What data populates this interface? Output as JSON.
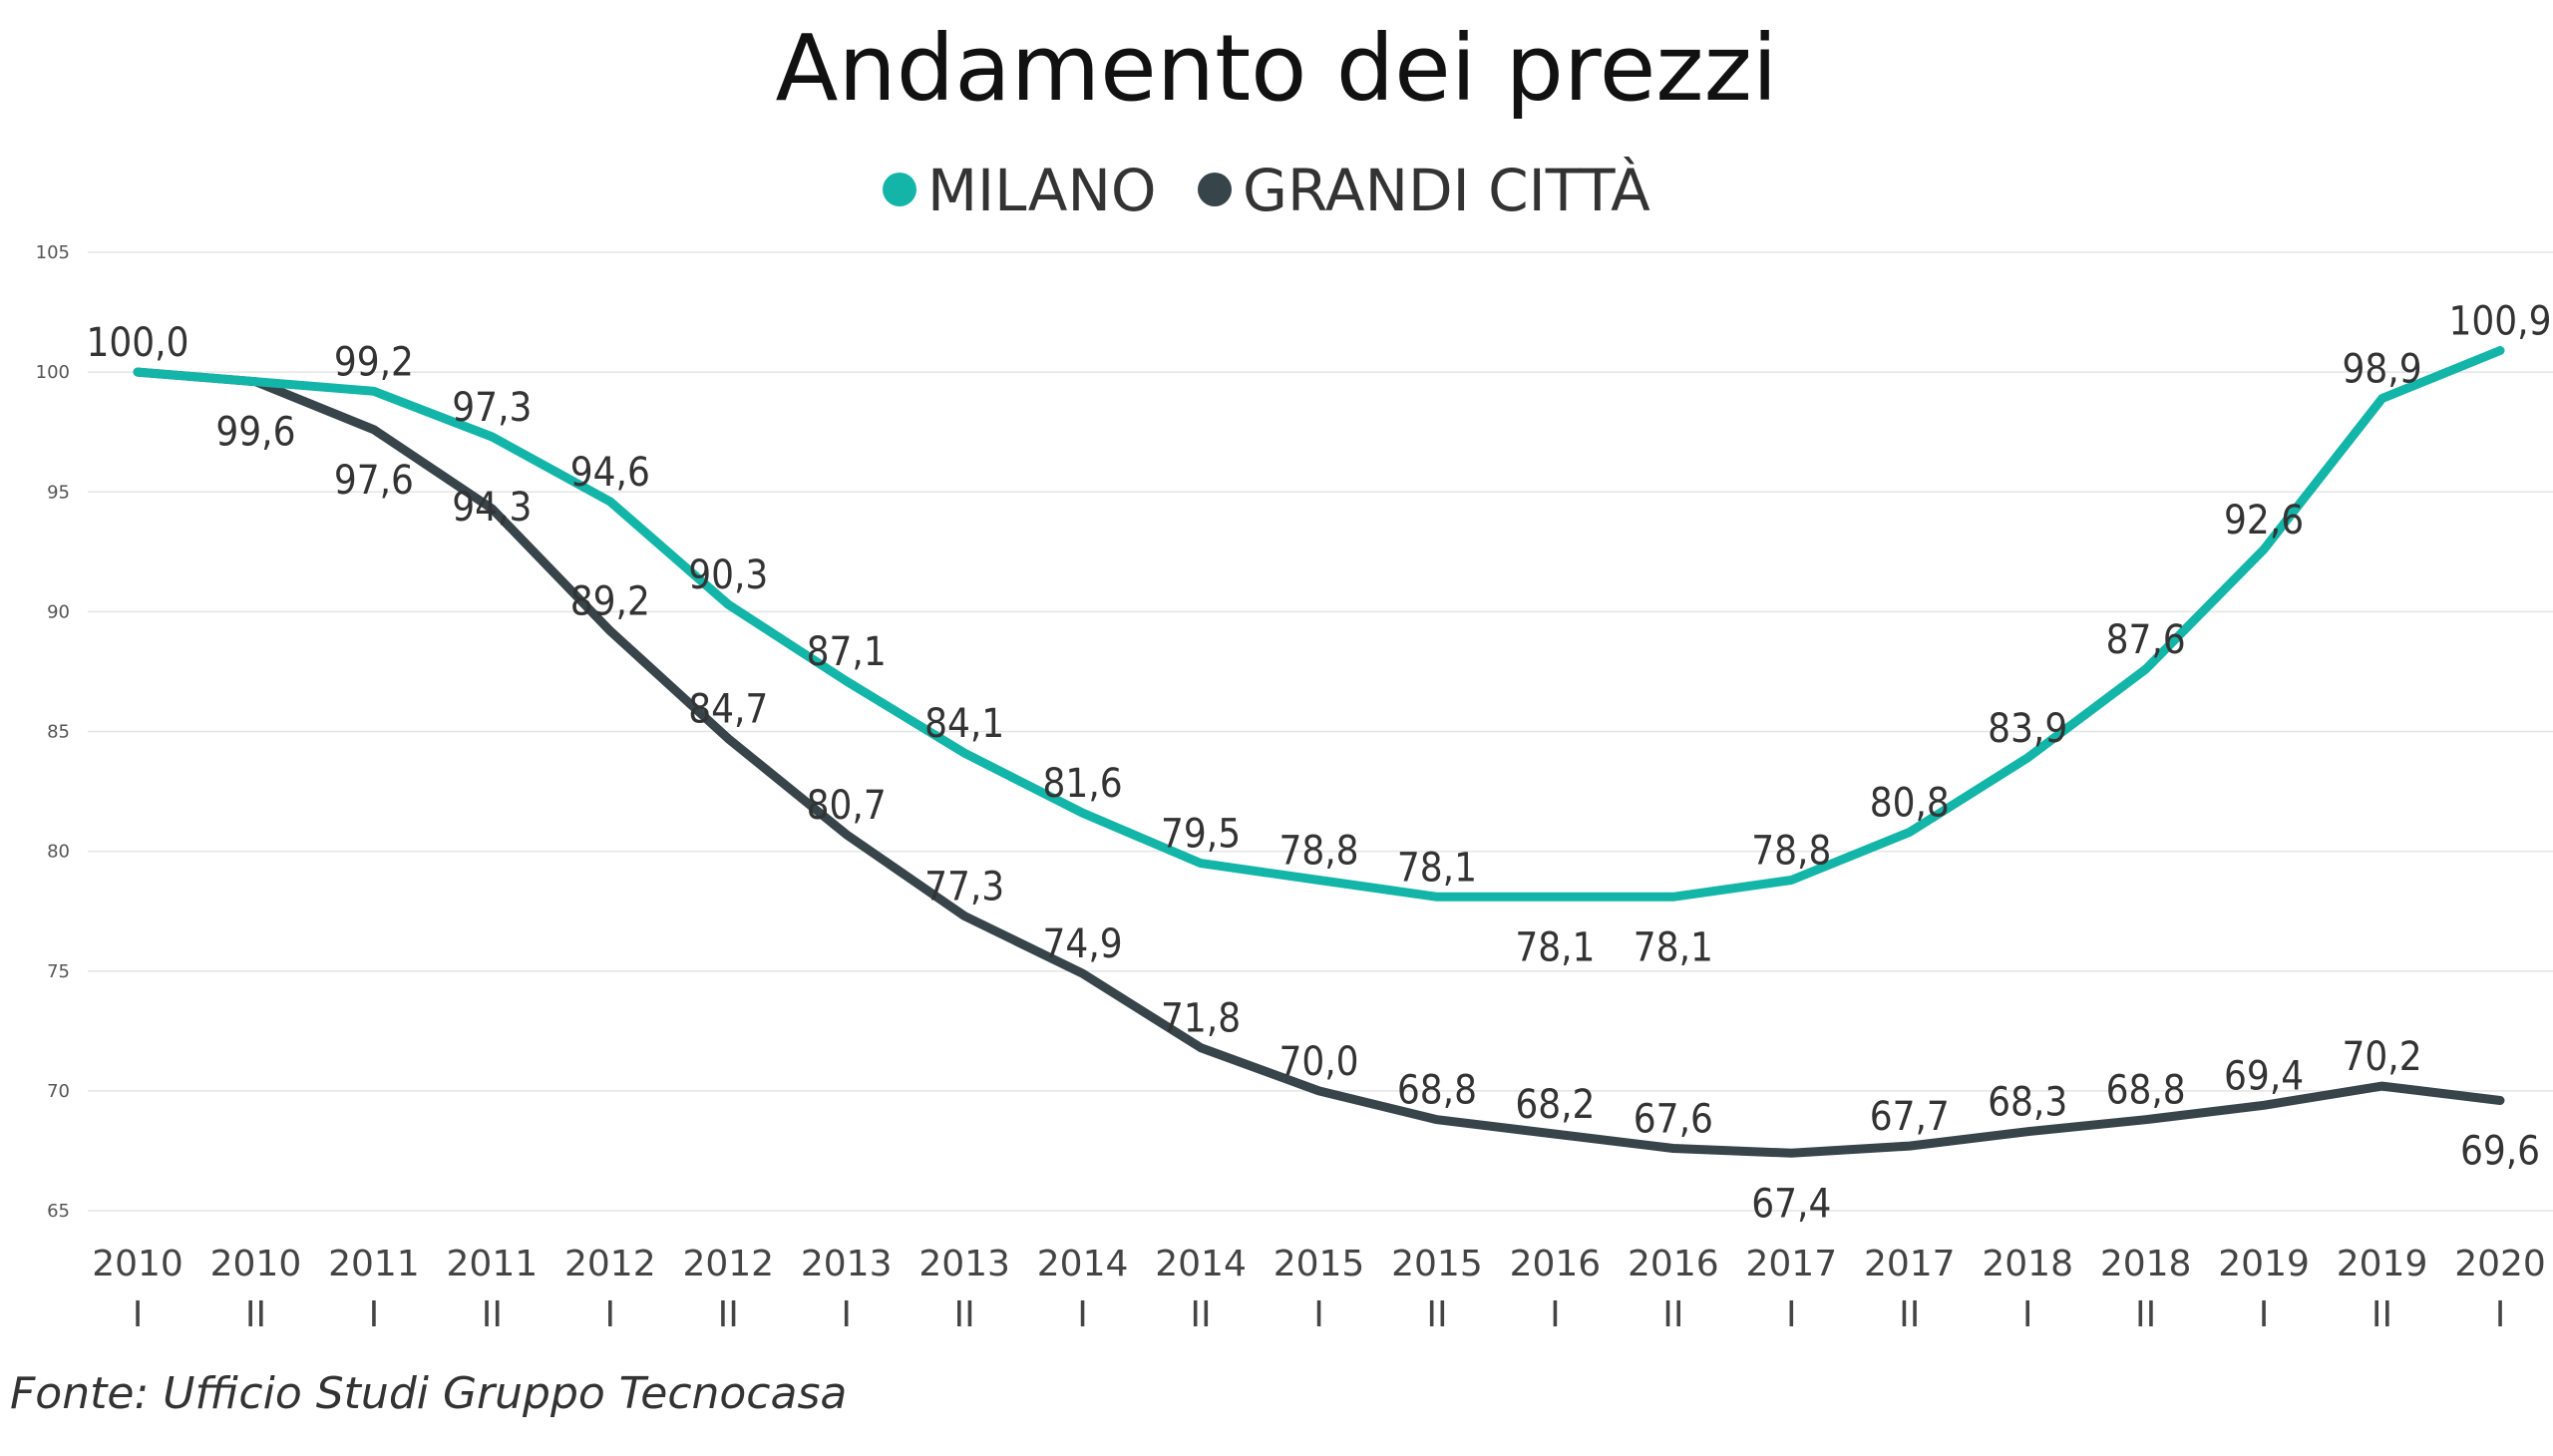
{
  "chart_data": {
    "type": "line",
    "title": "Andamento dei prezzi",
    "source": "Fonte: Ufficio Studi Gruppo Tecnocasa",
    "x": [
      [
        "2010",
        "I"
      ],
      [
        "2010",
        "II"
      ],
      [
        "2011",
        "I"
      ],
      [
        "2011",
        "II"
      ],
      [
        "2012",
        "I"
      ],
      [
        "2012",
        "II"
      ],
      [
        "2013",
        "I"
      ],
      [
        "2013",
        "II"
      ],
      [
        "2014",
        "I"
      ],
      [
        "2014",
        "II"
      ],
      [
        "2015",
        "I"
      ],
      [
        "2015",
        "II"
      ],
      [
        "2016",
        "I"
      ],
      [
        "2016",
        "II"
      ],
      [
        "2017",
        "I"
      ],
      [
        "2017",
        "II"
      ],
      [
        "2018",
        "I"
      ],
      [
        "2018",
        "II"
      ],
      [
        "2019",
        "I"
      ],
      [
        "2019",
        "II"
      ],
      [
        "2020",
        "I"
      ]
    ],
    "ylim": [
      65,
      105
    ],
    "yticks": [
      "65",
      "70",
      "75",
      "80",
      "85",
      "90",
      "95",
      "100",
      "105"
    ],
    "grid": true,
    "legend": "top-center",
    "series": [
      {
        "name": "MILANO",
        "color": "#13B5A8",
        "values": [
          100.0,
          99.6,
          99.2,
          97.3,
          94.6,
          90.3,
          87.1,
          84.1,
          81.6,
          79.5,
          78.8,
          78.1,
          78.1,
          78.1,
          78.8,
          80.8,
          83.9,
          87.6,
          92.6,
          98.9,
          100.9
        ],
        "labels": [
          "",
          "",
          "99,2",
          "97,3",
          "94,6",
          "90,3",
          "87,1",
          "84,1",
          "81,6",
          "79,5",
          "78,8",
          "78,1",
          "78,1",
          "78,1",
          "78,8",
          "80,8",
          "83,9",
          "87,6",
          "92,6",
          "98,9",
          "100,9"
        ]
      },
      {
        "name": "GRANDI CITTÀ",
        "color": "#374449",
        "values": [
          100.0,
          99.6,
          97.6,
          94.3,
          89.2,
          84.7,
          80.7,
          77.3,
          74.9,
          71.8,
          70.0,
          68.8,
          68.2,
          67.6,
          67.4,
          67.7,
          68.3,
          68.8,
          69.4,
          70.2,
          69.6
        ],
        "labels": [
          "100,0",
          "99,6",
          "97,6",
          "94,3",
          "89,2",
          "84,7",
          "80,7",
          "77,3",
          "74,9",
          "71,8",
          "70,0",
          "68,8",
          "68,2",
          "67,6",
          "67,4",
          "67,7",
          "68,3",
          "68,8",
          "69,4",
          "70,2",
          "69,6"
        ]
      }
    ]
  }
}
